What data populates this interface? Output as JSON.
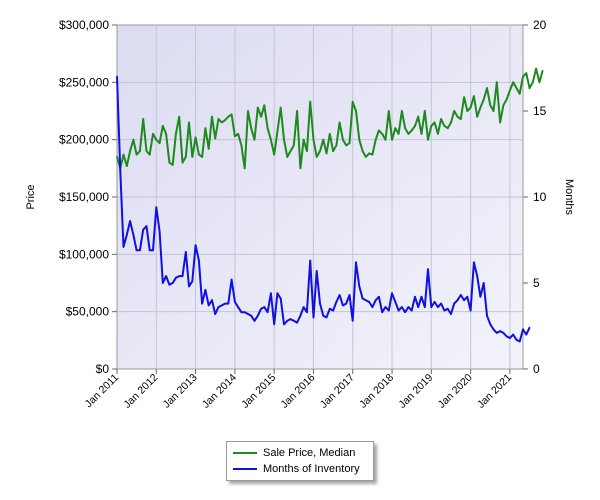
{
  "chart_data": {
    "type": "line",
    "title": "",
    "xlabel": "",
    "ylabel": "Price",
    "y2label": "Months",
    "ylim": [
      0,
      300000
    ],
    "y2lim": [
      0,
      20
    ],
    "grid": true,
    "legend_position": "bottom-center",
    "colors": {
      "plot_bg": "#e6e6f5",
      "sale": "#1e8a1e",
      "inventory": "#1010e0",
      "grid": "#c4c4d4"
    },
    "x_ticks": [
      "Jan 2011",
      "Jan 2012",
      "Jan 2013",
      "Jan 2014",
      "Jan 2015",
      "Jan 2016",
      "Jan 2017",
      "Jan 2018",
      "Jan 2019",
      "Jan 2020",
      "Jan 2021"
    ],
    "y_ticks": [
      "$0",
      "$50,000",
      "$100,000",
      "$150,000",
      "$200,000",
      "$250,000",
      "$300,000"
    ],
    "y2_ticks": [
      "0",
      "5",
      "10",
      "15",
      "20"
    ],
    "x_start": "2011-01",
    "series": [
      {
        "name": "Sale Price, Median",
        "axis": "left",
        "values": [
          185000,
          175000,
          187000,
          177000,
          190000,
          200000,
          187000,
          190000,
          218000,
          190000,
          187000,
          205000,
          200000,
          197000,
          212000,
          205000,
          180000,
          178000,
          205000,
          220000,
          180000,
          185000,
          215000,
          185000,
          202000,
          187000,
          185000,
          210000,
          192000,
          220000,
          201000,
          218000,
          215000,
          217000,
          220000,
          222000,
          203000,
          205000,
          195000,
          175000,
          225000,
          210000,
          200000,
          228000,
          220000,
          230000,
          210000,
          200000,
          187000,
          207000,
          228000,
          200000,
          185000,
          190000,
          195000,
          225000,
          175000,
          200000,
          190000,
          233000,
          200000,
          185000,
          190000,
          200000,
          188000,
          205000,
          190000,
          195000,
          215000,
          200000,
          195000,
          197000,
          233000,
          225000,
          200000,
          190000,
          185000,
          188000,
          187000,
          200000,
          208000,
          205000,
          200000,
          225000,
          200000,
          210000,
          205000,
          225000,
          210000,
          205000,
          208000,
          212000,
          220000,
          205000,
          225000,
          200000,
          212000,
          215000,
          205000,
          218000,
          212000,
          210000,
          215000,
          225000,
          220000,
          218000,
          237000,
          225000,
          228000,
          238000,
          220000,
          228000,
          235000,
          245000,
          230000,
          225000,
          250000,
          215000,
          230000,
          235000,
          243000,
          250000,
          245000,
          240000,
          255000,
          258000,
          245000,
          250000,
          262000,
          250000,
          260000
        ]
      },
      {
        "name": "Months of Inventory",
        "axis": "right",
        "values": [
          17.0,
          11.5,
          7.1,
          7.8,
          8.6,
          7.8,
          6.9,
          6.9,
          8.1,
          8.3,
          6.9,
          6.9,
          9.4,
          8.0,
          5.0,
          5.4,
          4.9,
          5.0,
          5.3,
          5.4,
          5.4,
          6.8,
          4.8,
          5.1,
          7.2,
          6.3,
          3.8,
          4.6,
          3.7,
          4.0,
          3.2,
          3.6,
          3.7,
          3.8,
          3.8,
          5.2,
          3.9,
          3.6,
          3.3,
          3.3,
          3.2,
          3.1,
          2.8,
          3.1,
          3.5,
          3.6,
          3.3,
          4.4,
          2.6,
          4.4,
          4.1,
          2.6,
          2.8,
          2.9,
          2.8,
          2.7,
          3.1,
          3.6,
          3.3,
          6.3,
          3.0,
          5.7,
          3.8,
          3.1,
          3.0,
          3.5,
          3.4,
          3.9,
          4.3,
          3.7,
          3.8,
          4.3,
          2.8,
          6.2,
          4.8,
          4.1,
          4.0,
          3.9,
          3.6,
          4.0,
          4.2,
          3.3,
          3.6,
          3.4,
          4.4,
          3.9,
          3.4,
          3.6,
          3.3,
          3.6,
          3.4,
          4.2,
          3.6,
          4.2,
          3.6,
          5.8,
          3.6,
          3.9,
          3.6,
          3.8,
          3.4,
          3.5,
          3.2,
          3.8,
          4.0,
          4.3,
          4.0,
          4.2,
          3.4,
          6.2,
          5.4,
          4.2,
          5.0,
          3.1,
          2.6,
          2.3,
          2.1,
          2.2,
          2.1,
          1.9,
          1.8,
          2.0,
          1.7,
          1.6,
          2.3,
          2.0,
          2.4
        ]
      }
    ]
  }
}
